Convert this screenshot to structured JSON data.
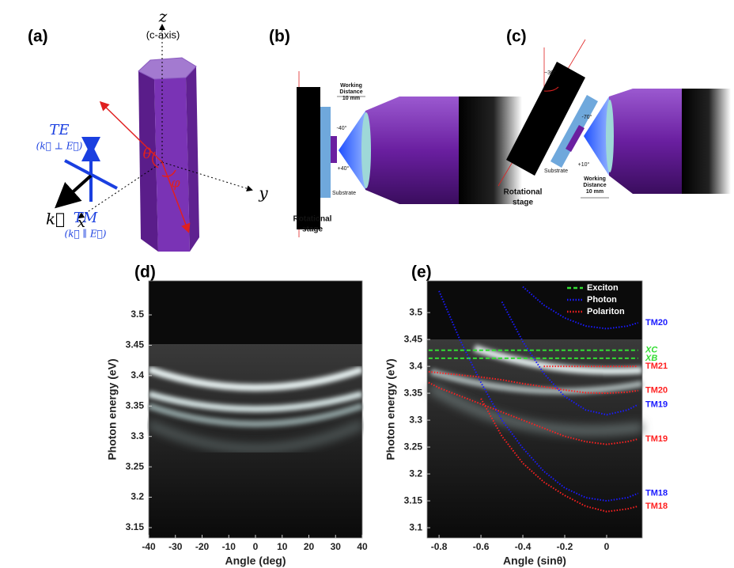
{
  "panels": {
    "a": {
      "label": "(a)",
      "z": "z",
      "c_axis": "(c-axis)",
      "y": "y",
      "x": "x",
      "te": "TE",
      "te_relation": "(k⃗ ⊥ E⃗)",
      "tm": "TM",
      "tm_relation": "(k⃗ ∥ E⃗)",
      "k": "k⃗",
      "theta": "θ",
      "phi": "φ"
    },
    "b": {
      "label": "(b)",
      "working_distance": [
        "Working",
        "Distance",
        "10 mm"
      ],
      "angle_minus": "-40°",
      "angle_plus": "+40°",
      "substrate": "Substrate",
      "stage": [
        "Rotational",
        "stage"
      ]
    },
    "c": {
      "label": "(c)",
      "tilt": "−30°",
      "angle_minus": "-70°",
      "angle_plus": "+10°",
      "substrate": "Substrate",
      "stage": [
        "Rotational",
        "stage"
      ],
      "working_distance": [
        "Working",
        "Distance",
        "10 mm"
      ]
    }
  },
  "chart_data": [
    {
      "type": "image",
      "label": "(d)",
      "x_label": "Angle (deg)",
      "y_label": "Photon energy (eV)",
      "xlim": [
        -40,
        40
      ],
      "xticks": [
        -40,
        -30,
        -20,
        -10,
        0,
        10,
        20,
        30,
        40
      ],
      "ylim": [
        3.133,
        3.556
      ],
      "yticks": [
        3.15,
        3.2,
        3.25,
        3.3,
        3.35,
        3.4,
        3.45,
        3.5
      ]
    },
    {
      "type": "line",
      "label": "(e)",
      "x_label": "Angle (sinθ)",
      "y_label": "Photon energy (eV)",
      "xlim": [
        -0.857,
        0.17
      ],
      "xticks": [
        -0.8,
        -0.6,
        -0.4,
        -0.2,
        0
      ],
      "ylim": [
        3.081,
        3.559
      ],
      "yticks": [
        3.1,
        3.15,
        3.2,
        3.25,
        3.3,
        3.35,
        3.4,
        3.45,
        3.5
      ],
      "legend": [
        {
          "name": "Exciton",
          "color": "#33dd33",
          "style": "dashed"
        },
        {
          "name": "Photon",
          "color": "#1a1aff",
          "style": "dotted"
        },
        {
          "name": "Polariton",
          "color": "#ff2020",
          "style": "dotted"
        }
      ],
      "x": [
        -0.85,
        -0.8,
        -0.7,
        -0.6,
        -0.5,
        -0.4,
        -0.3,
        -0.2,
        -0.1,
        0,
        0.1,
        0.15
      ],
      "series": [
        {
          "label": "XC",
          "color": "#33dd33",
          "style": "dashed",
          "values": [
            3.43,
            3.43,
            3.43,
            3.43,
            3.43,
            3.43,
            3.43,
            3.43,
            3.43,
            3.43,
            3.43,
            3.43
          ]
        },
        {
          "label": "XB",
          "color": "#33dd33",
          "style": "dashed",
          "values": [
            3.415,
            3.415,
            3.415,
            3.415,
            3.415,
            3.415,
            3.415,
            3.415,
            3.415,
            3.415,
            3.415,
            3.415
          ]
        },
        {
          "label": "TM20",
          "color": "#1a1aff",
          "style": "dotted",
          "values": [
            null,
            null,
            null,
            null,
            null,
            3.548,
            3.514,
            3.49,
            3.475,
            3.47,
            3.475,
            3.481
          ]
        },
        {
          "label": "TM19",
          "color": "#1a1aff",
          "style": "dotted",
          "values": [
            null,
            null,
            null,
            null,
            3.52,
            3.446,
            3.387,
            3.344,
            3.319,
            3.31,
            3.319,
            3.329
          ]
        },
        {
          "label": "TM18",
          "color": "#1a1aff",
          "style": "dotted",
          "values": [
            null,
            3.54,
            3.449,
            3.37,
            3.3,
            3.248,
            3.205,
            3.174,
            3.156,
            3.15,
            3.156,
            3.164
          ]
        },
        {
          "label": "TM21",
          "color": "#ff2020",
          "style": "dotted",
          "values": [
            null,
            null,
            null,
            null,
            null,
            null,
            3.4,
            3.4,
            3.4,
            3.4,
            3.4,
            3.4
          ]
        },
        {
          "label": "TM20",
          "color": "#ff2020",
          "style": "dotted",
          "values": [
            3.39,
            3.388,
            3.384,
            3.38,
            3.375,
            3.368,
            3.362,
            3.356,
            3.351,
            3.35,
            3.352,
            3.355
          ]
        },
        {
          "label": "TM19",
          "color": "#ff2020",
          "style": "dotted",
          "values": [
            3.37,
            3.36,
            3.345,
            3.33,
            3.315,
            3.3,
            3.285,
            3.27,
            3.26,
            3.255,
            3.26,
            3.265
          ]
        },
        {
          "label": "TM18",
          "color": "#ff2020",
          "style": "dotted",
          "values": [
            null,
            null,
            null,
            3.34,
            3.27,
            3.22,
            3.185,
            3.16,
            3.14,
            3.13,
            3.135,
            3.14
          ]
        }
      ]
    }
  ]
}
